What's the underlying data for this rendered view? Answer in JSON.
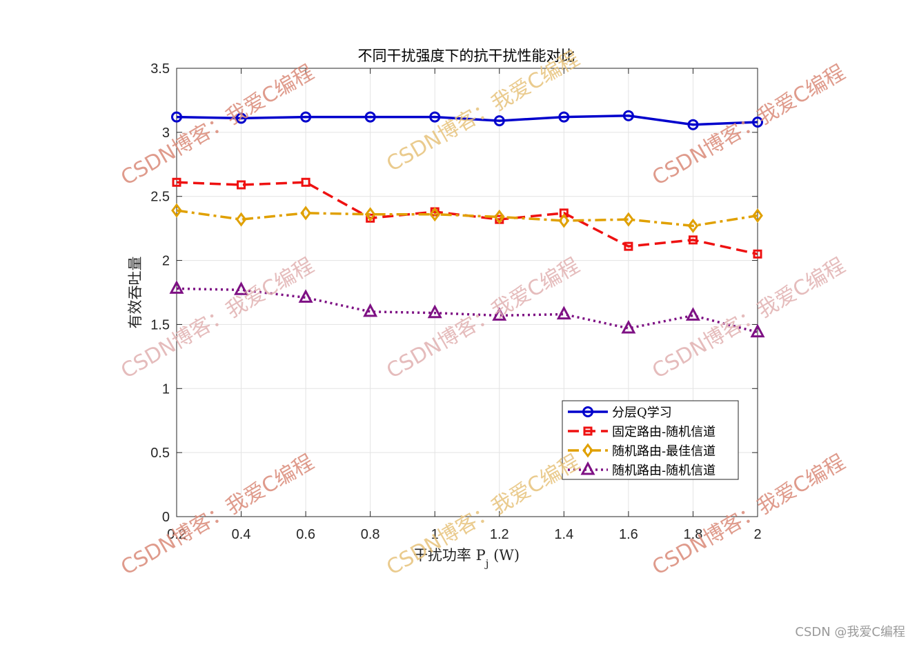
{
  "chart_data": {
    "type": "line",
    "title": "不同干扰强度下的抗干扰性能对比",
    "xlabel": "干扰功率 P",
    "xlabel_sub": "j",
    "xlabel_unit": " (W)",
    "ylabel": "有效吞吐量",
    "xlim": [
      0.2,
      2
    ],
    "ylim": [
      0,
      3.5
    ],
    "x": [
      0.2,
      0.4,
      0.6,
      0.8,
      1.0,
      1.2,
      1.4,
      1.6,
      1.8,
      2.0
    ],
    "xticks": [
      0.2,
      0.4,
      0.6,
      0.8,
      1,
      1.2,
      1.4,
      1.6,
      1.8,
      2
    ],
    "xtick_labels": [
      "0.2",
      "0.4",
      "0.6",
      "0.8",
      "1",
      "1.2",
      "1.4",
      "1.6",
      "1.8",
      "2"
    ],
    "yticks": [
      0,
      0.5,
      1,
      1.5,
      2,
      2.5,
      3,
      3.5
    ],
    "ytick_labels": [
      "0",
      "0.5",
      "1",
      "1.5",
      "2",
      "2.5",
      "3",
      "3.5"
    ],
    "grid": true,
    "legend_position": "bottom-right",
    "series": [
      {
        "name": "分层Q学习",
        "color": "#0000cc",
        "dash": "solid",
        "marker": "circle",
        "values": [
          3.12,
          3.11,
          3.12,
          3.12,
          3.12,
          3.09,
          3.12,
          3.13,
          3.06,
          3.08
        ]
      },
      {
        "name": "固定路由-随机信道",
        "color": "#ee1111",
        "dash": "dashed",
        "marker": "square",
        "values": [
          2.61,
          2.59,
          2.61,
          2.33,
          2.38,
          2.32,
          2.37,
          2.11,
          2.16,
          2.05
        ]
      },
      {
        "name": "随机路由-最佳信道",
        "color": "#e0a000",
        "dash": "dashdot",
        "marker": "diamond",
        "values": [
          2.39,
          2.32,
          2.37,
          2.36,
          2.36,
          2.34,
          2.31,
          2.32,
          2.27,
          2.35
        ]
      },
      {
        "name": "随机路由-随机信道",
        "color": "#7e1184",
        "dash": "dotted",
        "marker": "triangle",
        "values": [
          1.78,
          1.77,
          1.71,
          1.6,
          1.59,
          1.57,
          1.58,
          1.47,
          1.57,
          1.44
        ]
      }
    ]
  },
  "watermark": {
    "text": "CSDN博客：我爱C编程",
    "colors": [
      "#d98a78",
      "#e0b0b0",
      "#e6c27a"
    ]
  },
  "credit": "CSDN @我爱C编程"
}
